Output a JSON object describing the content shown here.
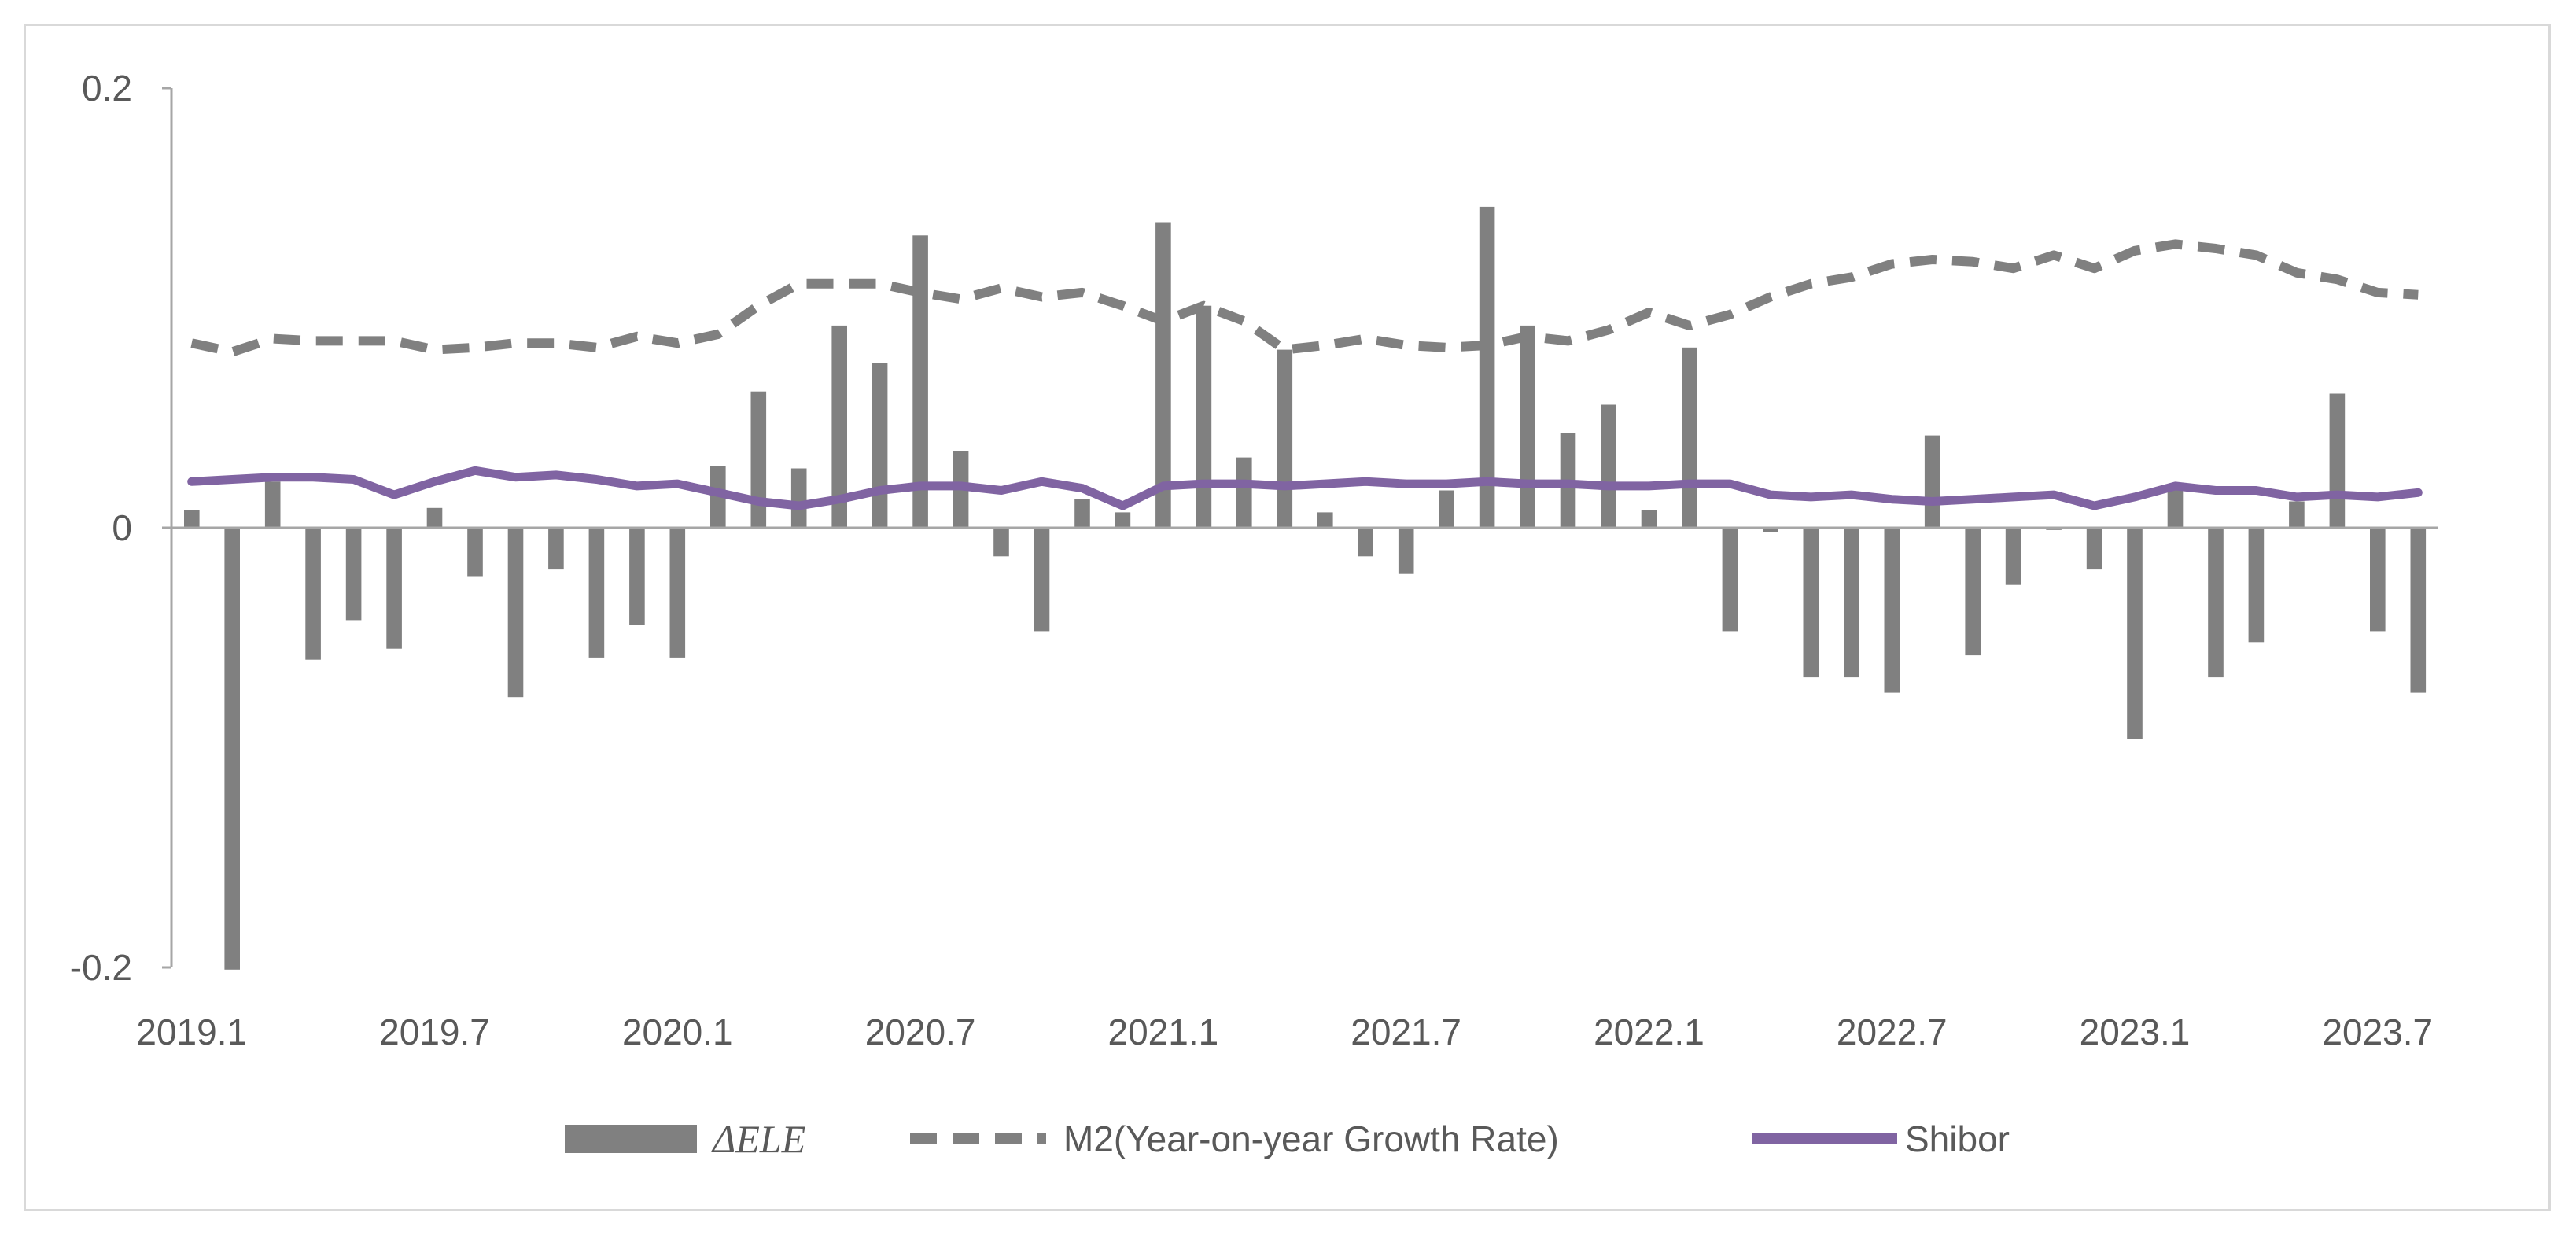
{
  "chart_data": {
    "type": "bar",
    "title": "",
    "xlabel": "",
    "ylabel": "",
    "ylim": [
      -0.2,
      0.2
    ],
    "y_ticks": [
      "0.2",
      "0",
      "-0.2"
    ],
    "y_tick_values": [
      0.2,
      0,
      -0.2
    ],
    "x_tick_labels": [
      "2019.1",
      "2019.7",
      "2020.1",
      "2020.7",
      "2021.1",
      "2021.7",
      "2022.1",
      "2022.7",
      "2023.1",
      "2023.7"
    ],
    "x_tick_indices": [
      0,
      6,
      12,
      18,
      24,
      30,
      36,
      42,
      48,
      54
    ],
    "legend_position": "bottom",
    "grid": false,
    "categories": [
      "2019.1",
      "2019.2",
      "2019.3",
      "2019.4",
      "2019.5",
      "2019.6",
      "2019.7",
      "2019.8",
      "2019.9",
      "2019.10",
      "2019.11",
      "2019.12",
      "2020.1",
      "2020.2",
      "2020.3",
      "2020.4",
      "2020.5",
      "2020.6",
      "2020.7",
      "2020.8",
      "2020.9",
      "2020.10",
      "2020.11",
      "2020.12",
      "2021.1",
      "2021.2",
      "2021.3",
      "2021.4",
      "2021.5",
      "2021.6",
      "2021.7",
      "2021.8",
      "2021.9",
      "2021.10",
      "2021.11",
      "2021.12",
      "2022.1",
      "2022.2",
      "2022.3",
      "2022.4",
      "2022.5",
      "2022.6",
      "2022.7",
      "2022.8",
      "2022.9",
      "2022.10",
      "2022.11",
      "2022.12",
      "2023.1",
      "2023.2",
      "2023.3",
      "2023.4",
      "2023.5",
      "2023.6",
      "2023.7",
      "2023.8"
    ],
    "series": [
      {
        "name": "ΔELE",
        "kind": "bar",
        "color": "#808080",
        "values": [
          0.008,
          -0.201,
          0.021,
          -0.06,
          -0.042,
          -0.055,
          0.009,
          -0.022,
          -0.077,
          -0.019,
          -0.059,
          -0.044,
          -0.059,
          0.028,
          0.062,
          0.027,
          0.092,
          0.075,
          0.133,
          0.035,
          -0.013,
          -0.047,
          0.013,
          0.007,
          0.139,
          0.101,
          0.032,
          0.081,
          0.007,
          -0.013,
          -0.021,
          0.017,
          0.146,
          0.092,
          0.043,
          0.056,
          0.008,
          0.082,
          -0.047,
          -0.002,
          -0.068,
          -0.068,
          -0.075,
          0.042,
          -0.058,
          -0.026,
          -0.001,
          -0.019,
          -0.096,
          0.018,
          -0.068,
          -0.052,
          0.012,
          0.061,
          -0.047,
          -0.075
        ]
      },
      {
        "name": "M2(Year-on-year Growth Rate)",
        "kind": "line",
        "dash": true,
        "color": "#808080",
        "values": [
          0.084,
          0.08,
          0.086,
          0.085,
          0.085,
          0.085,
          0.081,
          0.082,
          0.084,
          0.084,
          0.082,
          0.087,
          0.084,
          0.088,
          0.101,
          0.111,
          0.111,
          0.111,
          0.107,
          0.104,
          0.109,
          0.105,
          0.107,
          0.101,
          0.094,
          0.101,
          0.094,
          0.081,
          0.083,
          0.086,
          0.083,
          0.082,
          0.083,
          0.087,
          0.085,
          0.09,
          0.098,
          0.092,
          0.097,
          0.105,
          0.111,
          0.114,
          0.12,
          0.122,
          0.121,
          0.118,
          0.124,
          0.118,
          0.126,
          0.129,
          0.127,
          0.124,
          0.116,
          0.113,
          0.107,
          0.106
        ]
      },
      {
        "name": "Shibor",
        "kind": "line",
        "dash": false,
        "color": "#8064a2",
        "values": [
          0.021,
          0.022,
          0.023,
          0.023,
          0.022,
          0.015,
          0.021,
          0.026,
          0.023,
          0.024,
          0.022,
          0.019,
          0.02,
          0.016,
          0.012,
          0.01,
          0.013,
          0.017,
          0.019,
          0.019,
          0.017,
          0.021,
          0.018,
          0.01,
          0.019,
          0.02,
          0.02,
          0.019,
          0.02,
          0.021,
          0.02,
          0.02,
          0.021,
          0.02,
          0.02,
          0.019,
          0.019,
          0.02,
          0.02,
          0.015,
          0.014,
          0.015,
          0.013,
          0.012,
          0.013,
          0.014,
          0.015,
          0.01,
          0.014,
          0.019,
          0.017,
          0.017,
          0.014,
          0.015,
          0.014,
          0.016
        ]
      }
    ]
  },
  "legend": {
    "items": [
      {
        "label": "ΔELE"
      },
      {
        "label": "M2(Year-on-year Growth Rate)"
      },
      {
        "label": "Shibor"
      }
    ]
  }
}
